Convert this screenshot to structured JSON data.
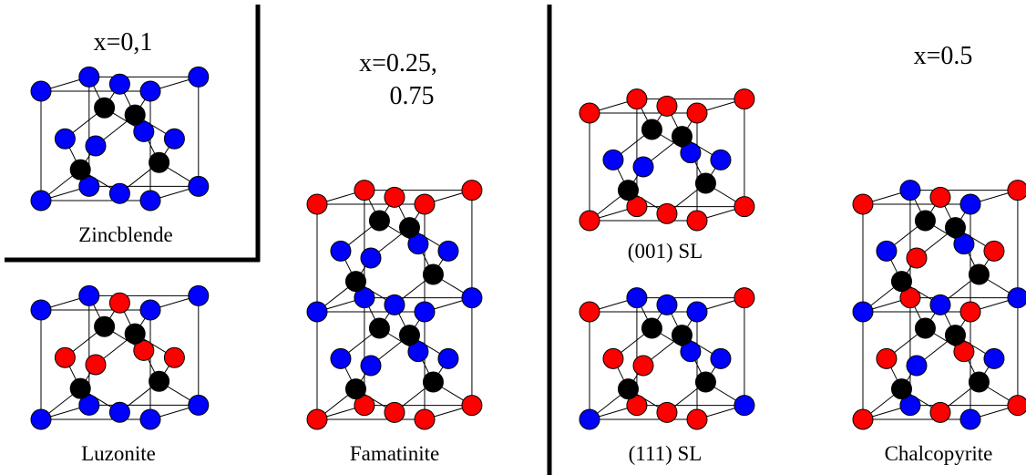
{
  "headings": {
    "zincblende": "x=0,1",
    "famatinite": [
      "x=0.25,",
      "0.75"
    ],
    "chalcopyrite": "x=0.5"
  },
  "structures": [
    "Zincblende",
    "Luzonite",
    "Famatinite",
    "(001) SL",
    "(111) SL",
    "Chalcopyrite"
  ]
}
